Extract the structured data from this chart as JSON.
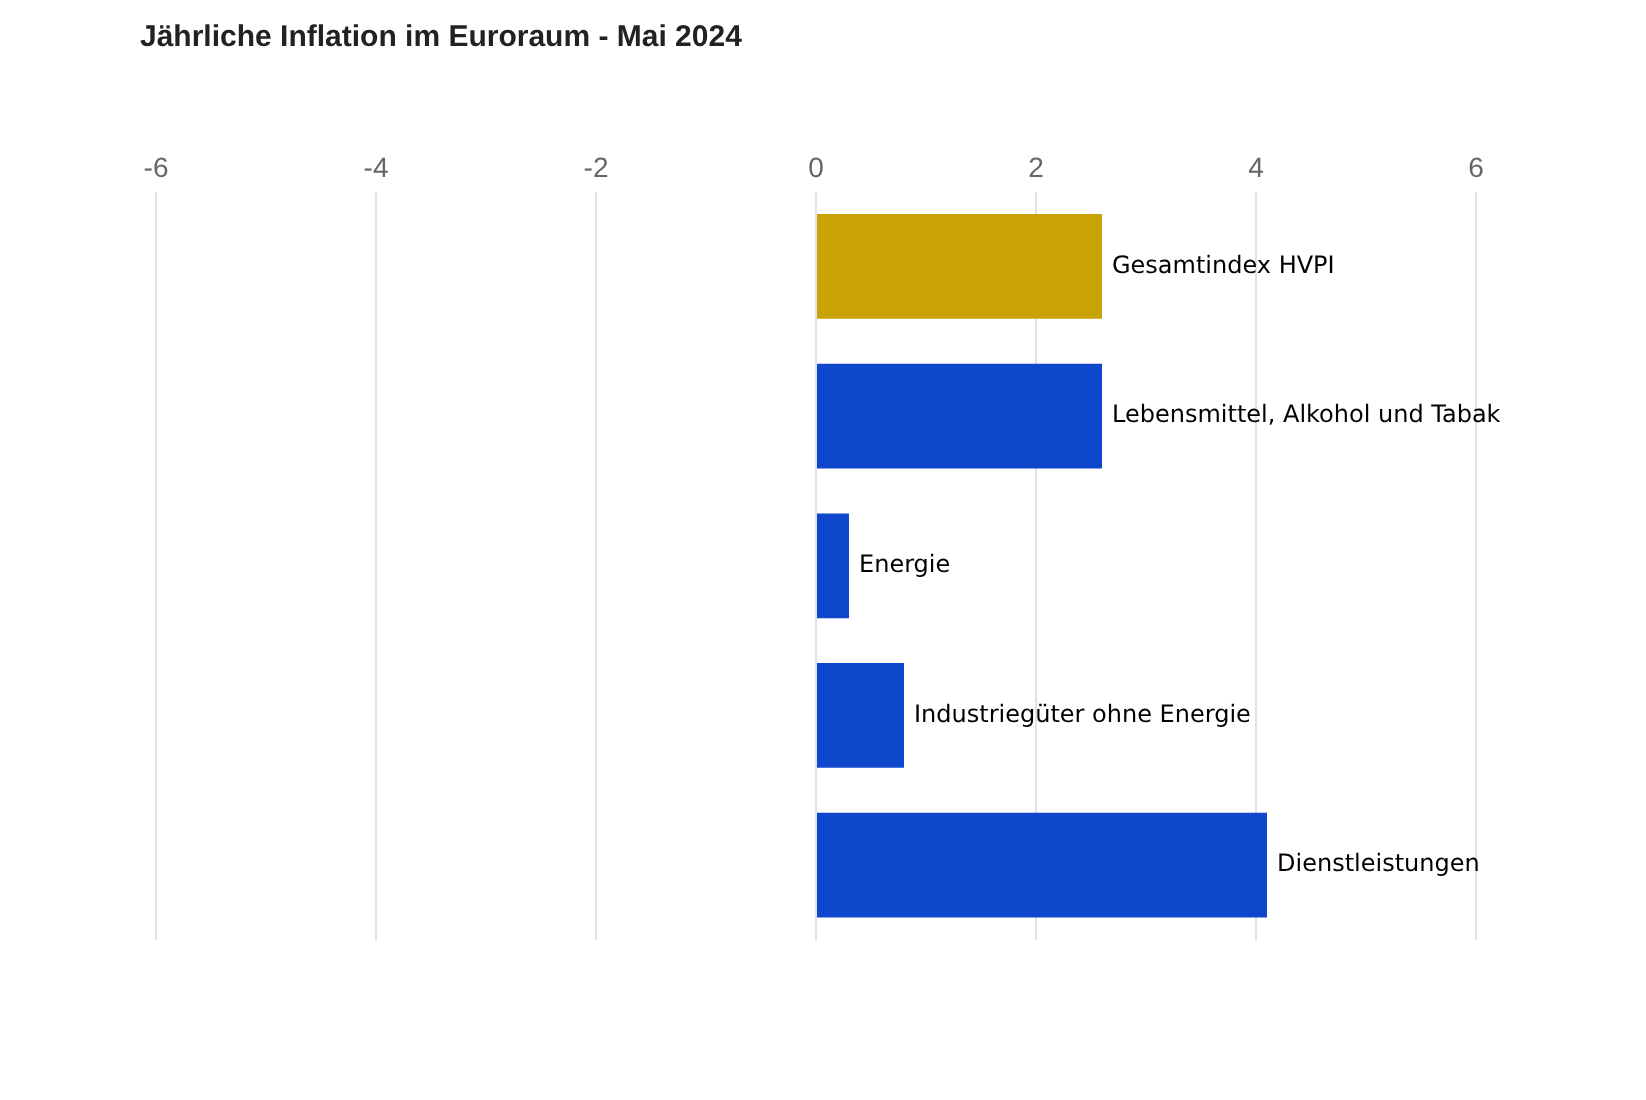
{
  "chart_data": {
    "type": "bar",
    "orientation": "horizontal",
    "title": "Jährliche Inflation im Euroraum - Mai 2024",
    "categories": [
      "Gesamtindex HVPI",
      "Lebensmittel, Alkohol und Tabak",
      "Energie",
      "Industriegüter ohne Energie",
      "Dienstleistungen"
    ],
    "values": [
      2.6,
      2.6,
      0.3,
      0.8,
      4.1
    ],
    "colors": [
      "#c9a206",
      "#0e47cb",
      "#0e47cb",
      "#0e47cb",
      "#0e47cb"
    ],
    "xlim": [
      -6,
      6
    ],
    "xticks": [
      -6,
      -4,
      -2,
      0,
      2,
      4,
      6
    ],
    "grid": "x"
  }
}
